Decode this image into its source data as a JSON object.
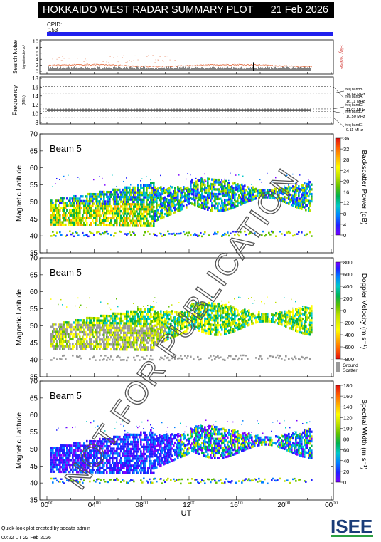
{
  "header": {
    "title": "HOKKAIDO WEST RADAR SUMMARY PLOT",
    "date": "21 Feb 2026",
    "cpid_label": "CPID:",
    "cpid_value": "153"
  },
  "footer": {
    "line1": "Quick-look plot created by sddata admin",
    "line2": "00:22 UT 22 Feb 2026",
    "logo": "ISEE"
  },
  "watermark": "NOT FOR PUBLICATION",
  "x_axis": {
    "label": "UT",
    "ticks": [
      "00",
      "04",
      "08",
      "12",
      "16",
      "20",
      "00"
    ],
    "tick_sup": "00",
    "range_hours": [
      0,
      24
    ],
    "data_end_hours": 22.3
  },
  "noise_panel": {
    "ylabel": "Search Noise",
    "ylabel_small": "log-noise dB×10³",
    "right_label": "Sky Noise",
    "right_label_color": "#d9534f",
    "yticks": [
      "0",
      "2",
      "4",
      "6",
      "8",
      "10"
    ],
    "ylim": [
      0,
      10
    ]
  },
  "freq_panel": {
    "ylabel": "Frequency",
    "ylabel_small": "(MHz)",
    "yticks": [
      "8",
      "10",
      "12",
      "14",
      "16",
      "18"
    ],
    "ylim": [
      8,
      18
    ],
    "band_lines": [
      16.11,
      14.64,
      11.07,
      10.5,
      9.11
    ],
    "operating_freq": 10.8,
    "bands": [
      {
        "label": "freq bandA",
        "value": "16.11 MHz"
      },
      {
        "label": "freq bandB",
        "value": "14.64 MHz"
      },
      {
        "label": "freq bandC",
        "value": "11.07 MHz"
      },
      {
        "label": "freq bandD",
        "value": "10.50 MHz"
      },
      {
        "label": "freq bandE",
        "value": "9.11 MHz"
      }
    ]
  },
  "chart_data": [
    {
      "type": "heatmap",
      "title": "Beam  5",
      "ylabel": "Magnetic Latitude",
      "yticks": [
        "35",
        "40",
        "45",
        "50",
        "55",
        "60",
        "65",
        "70"
      ],
      "ylim": [
        35,
        70
      ],
      "colorbar_label": "Backscatter Power (dB)",
      "colorbar_ticks": [
        "0",
        "4",
        "8",
        "12",
        "16",
        "20",
        "24",
        "28",
        "32",
        "36"
      ],
      "colorbar_range": [
        0,
        36
      ]
    },
    {
      "type": "heatmap",
      "title": "Beam  5",
      "ylabel": "Magnetic Latitude",
      "yticks": [
        "35",
        "40",
        "45",
        "50",
        "55",
        "60",
        "65",
        "70"
      ],
      "ylim": [
        35,
        70
      ],
      "colorbar_label": "Doppler Velocity (m s⁻¹)",
      "colorbar_ticks": [
        "-800",
        "-600",
        "-400",
        "-200",
        "0",
        "200",
        "400",
        "600",
        "800"
      ],
      "colorbar_range": [
        -800,
        800
      ],
      "ground_scatter_label": "Ground Scatter"
    },
    {
      "type": "heatmap",
      "title": "Beam  5",
      "ylabel": "Magnetic Latitude",
      "yticks": [
        "35",
        "40",
        "45",
        "50",
        "55",
        "60",
        "65",
        "70"
      ],
      "ylim": [
        35,
        70
      ],
      "colorbar_label": "Spectral Width (m s⁻¹)",
      "colorbar_ticks": [
        "0",
        "20",
        "40",
        "60",
        "80",
        "100",
        "120",
        "140",
        "160",
        "180"
      ],
      "colorbar_range": [
        0,
        180
      ]
    }
  ],
  "colors": {
    "cpid_bar": "#2020ee",
    "power_scale": [
      "#7a00ff",
      "#2020ff",
      "#0080ff",
      "#00c8c8",
      "#00b050",
      "#60c000",
      "#c0e000",
      "#ffff00",
      "#ffb000",
      "#ff6000",
      "#e01010"
    ],
    "velocity_scale": [
      "#e01010",
      "#ff6000",
      "#ffb000",
      "#ffff00",
      "#c0e000",
      "#60c000",
      "#00b050",
      "#00c8c8",
      "#0080ff",
      "#2020ff",
      "#7a00ff"
    ],
    "ground_scatter": "#999999"
  }
}
